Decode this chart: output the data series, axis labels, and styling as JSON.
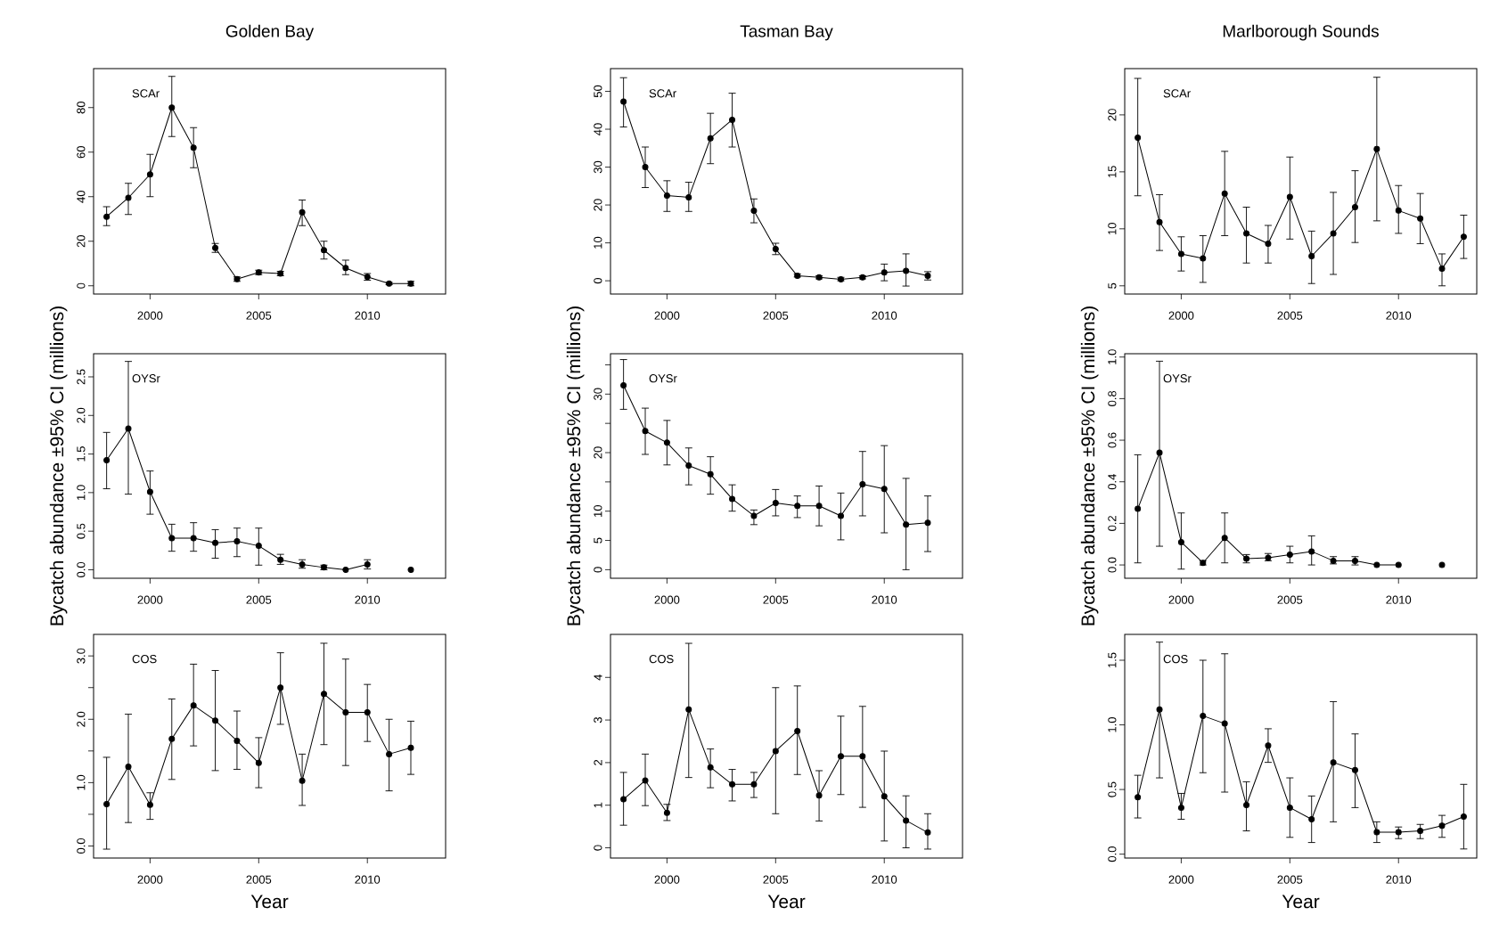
{
  "chart_data": [
    {
      "type": "line",
      "title": "Golden Bay",
      "annotations": [
        "SCAr"
      ],
      "marker": "circle",
      "line_style": "solid",
      "x": [
        1998,
        1999,
        2000,
        2001,
        2002,
        2003,
        2004,
        2005,
        2006,
        2007,
        2008,
        2009,
        2010,
        2011,
        2012
      ],
      "xlim": [
        1997.4,
        2013.6
      ],
      "xticks": [
        2000,
        2005,
        2010
      ],
      "ylim": [
        -3.7,
        97.5
      ],
      "yticks": [
        0,
        20,
        40,
        60,
        80
      ],
      "series": [
        {
          "color": "#000000",
          "values": [
            31,
            39.5,
            50,
            80,
            62,
            17,
            3,
            6,
            5.5,
            33,
            16,
            8,
            4,
            1,
            1
          ],
          "errors": [
            [
              27,
              35.5
            ],
            [
              32,
              46
            ],
            [
              40,
              59
            ],
            [
              67,
              94
            ],
            [
              53,
              71
            ],
            [
              15,
              19
            ],
            [
              2,
              4
            ],
            [
              5,
              7
            ],
            [
              4.5,
              6.5
            ],
            [
              27,
              38.5
            ],
            [
              12,
              20
            ],
            [
              5,
              11.5
            ],
            [
              2.5,
              5.5
            ],
            [
              0.5,
              1.5
            ],
            [
              0,
              2
            ]
          ]
        }
      ]
    },
    {
      "type": "line",
      "title": "Tasman Bay",
      "annotations": [
        "SCAr"
      ],
      "marker": "circle",
      "line_style": "solid",
      "x": [
        1998,
        1999,
        2000,
        2001,
        2002,
        2003,
        2004,
        2005,
        2006,
        2007,
        2008,
        2009,
        2010,
        2011,
        2012
      ],
      "xlim": [
        1997.4,
        2013.6
      ],
      "xticks": [
        2000,
        2005,
        2010
      ],
      "ylim": [
        -3.5,
        56
      ],
      "yticks": [
        0,
        10,
        20,
        30,
        40,
        50
      ],
      "series": [
        {
          "color": "#000000",
          "values": [
            47.3,
            30,
            22.5,
            22,
            37.6,
            42.5,
            18.5,
            8.4,
            1.3,
            0.9,
            0.4,
            0.9,
            2.2,
            2.6,
            1.3
          ],
          "errors": [
            [
              40.6,
              53.6
            ],
            [
              24.6,
              35.3
            ],
            [
              18.3,
              26.4
            ],
            [
              18.3,
              26
            ],
            [
              30.9,
              44.2
            ],
            [
              35.3,
              49.5
            ],
            [
              15.3,
              21.6
            ],
            [
              6.9,
              9.9
            ],
            [
              1.0,
              1.8
            ],
            [
              0.5,
              1.3
            ],
            [
              0,
              0.9
            ],
            [
              0.5,
              1.3
            ],
            [
              0,
              4.4
            ],
            [
              -1.4,
              7.1
            ],
            [
              0.2,
              2.4
            ]
          ]
        }
      ]
    },
    {
      "type": "line",
      "title": "Marlborough Sounds",
      "annotations": [
        "SCAr"
      ],
      "marker": "circle",
      "line_style": "solid",
      "x": [
        1998,
        1999,
        2000,
        2001,
        2002,
        2003,
        2004,
        2005,
        2006,
        2007,
        2008,
        2009,
        2010,
        2011,
        2012,
        2013
      ],
      "xlim": [
        1997.4,
        2013.6
      ],
      "xticks": [
        2000,
        2005,
        2010
      ],
      "ylim": [
        4.28,
        24.06
      ],
      "yticks": [
        5,
        10,
        15,
        20
      ],
      "series": [
        {
          "color": "#000000",
          "values": [
            18.0,
            10.6,
            7.8,
            7.4,
            13.1,
            9.6,
            8.7,
            12.8,
            7.6,
            9.6,
            11.9,
            17.0,
            11.6,
            10.9,
            6.5,
            9.3
          ],
          "errors": [
            [
              12.9,
              23.2
            ],
            [
              8.1,
              13.0
            ],
            [
              6.3,
              9.3
            ],
            [
              5.3,
              9.4
            ],
            [
              9.4,
              16.8
            ],
            [
              7.0,
              11.9
            ],
            [
              7.0,
              10.3
            ],
            [
              9.1,
              16.3
            ],
            [
              5.2,
              9.8
            ],
            [
              6.0,
              13.2
            ],
            [
              8.8,
              15.1
            ],
            [
              10.7,
              23.3
            ],
            [
              9.6,
              13.8
            ],
            [
              8.7,
              13.1
            ],
            [
              5.0,
              7.8
            ],
            [
              7.4,
              11.2
            ]
          ]
        }
      ]
    },
    {
      "type": "line",
      "ylabel": "Bycatch abundance ±95% CI (millions)",
      "annotations": [
        "OYSr"
      ],
      "marker": "circle",
      "line_style": "solid",
      "x": [
        1998,
        1999,
        2000,
        2001,
        2002,
        2003,
        2004,
        2005,
        2006,
        2007,
        2008,
        2009,
        2010,
        2011,
        2012
      ],
      "xlim": [
        1997.4,
        2013.6
      ],
      "xticks": [
        2000,
        2005,
        2010
      ],
      "ylim": [
        -0.11,
        2.8
      ],
      "yticks": [
        {
          "value": 0,
          "label": "0.0"
        },
        {
          "value": 0.5,
          "label": "0.5"
        },
        {
          "value": 1,
          "label": "1.0"
        },
        {
          "value": 1.5,
          "label": "1.5"
        },
        {
          "value": 2,
          "label": "2.0"
        },
        {
          "value": 2.5,
          "label": "2.5"
        }
      ],
      "series": [
        {
          "color": "#000000",
          "values": [
            1.42,
            1.83,
            1.01,
            0.41,
            0.41,
            0.35,
            0.37,
            0.31,
            0.13,
            0.07,
            0.03,
            0.0,
            0.07,
            null,
            0.0
          ],
          "errors": [
            [
              1.05,
              1.78
            ],
            [
              0.98,
              2.7
            ],
            [
              0.72,
              1.28
            ],
            [
              0.24,
              0.59
            ],
            [
              0.24,
              0.61
            ],
            [
              0.15,
              0.52
            ],
            [
              0.17,
              0.54
            ],
            [
              0.06,
              0.54
            ],
            [
              0.07,
              0.2
            ],
            [
              0.02,
              0.13
            ],
            [
              0.0,
              0.06
            ],
            null,
            [
              0.01,
              0.13
            ],
            null,
            null
          ]
        }
      ]
    },
    {
      "type": "line",
      "ylabel": "Bycatch abundance ±95% CI (millions)",
      "annotations": [
        "OYSr"
      ],
      "marker": "circle",
      "line_style": "solid",
      "x": [
        1998,
        1999,
        2000,
        2001,
        2002,
        2003,
        2004,
        2005,
        2006,
        2007,
        2008,
        2009,
        2010,
        2011,
        2012
      ],
      "xlim": [
        1997.4,
        2013.6
      ],
      "xticks": [
        2000,
        2005,
        2010
      ],
      "ylim": [
        -1.46,
        36.9
      ],
      "yticks": [
        0,
        5,
        10,
        {
          "value": 15,
          "label": null
        },
        20,
        {
          "value": 25,
          "label": null
        },
        30,
        {
          "value": 35,
          "label": null
        }
      ],
      "series": [
        {
          "color": "#000000",
          "values": [
            31.5,
            23.7,
            21.7,
            17.8,
            16.3,
            12.1,
            9.2,
            11.4,
            10.9,
            10.9,
            9.2,
            14.6,
            13.8,
            7.7,
            8.0
          ],
          "errors": [
            [
              27.4,
              35.9
            ],
            [
              19.7,
              27.6
            ],
            [
              17.9,
              25.5
            ],
            [
              14.5,
              20.8
            ],
            [
              12.9,
              19.3
            ],
            [
              10.0,
              14.5
            ],
            [
              7.7,
              10.2
            ],
            [
              9.2,
              13.7
            ],
            [
              8.9,
              12.6
            ],
            [
              7.5,
              14.3
            ],
            [
              5.1,
              13.1
            ],
            [
              9.2,
              20.2
            ],
            [
              6.3,
              21.2
            ],
            [
              0,
              15.6
            ],
            [
              3.1,
              12.6
            ]
          ]
        }
      ]
    },
    {
      "type": "line",
      "ylabel": "Bycatch abundance ±95% CI (millions)",
      "annotations": [
        "OYSr"
      ],
      "marker": "circle",
      "line_style": "solid",
      "x": [
        1998,
        1999,
        2000,
        2001,
        2002,
        2003,
        2004,
        2005,
        2006,
        2007,
        2008,
        2009,
        2010,
        2011,
        2012
      ],
      "xlim": [
        1997.4,
        2013.6
      ],
      "xticks": [
        2000,
        2005,
        2010
      ],
      "ylim": [
        -0.064,
        1.016
      ],
      "yticks": [
        {
          "value": 0,
          "label": "0.0"
        },
        {
          "value": 0.2,
          "label": "0.2"
        },
        {
          "value": 0.4,
          "label": "0.4"
        },
        {
          "value": 0.6,
          "label": "0.6"
        },
        {
          "value": 0.8,
          "label": "0.8"
        },
        {
          "value": 1,
          "label": "1.0"
        }
      ],
      "series": [
        {
          "color": "#000000",
          "values": [
            0.27,
            0.54,
            0.11,
            0.01,
            0.13,
            0.03,
            0.035,
            0.05,
            0.065,
            0.02,
            0.02,
            0.0,
            0.0,
            null,
            0.0
          ],
          "errors": [
            [
              0.01,
              0.53
            ],
            [
              0.09,
              0.98
            ],
            [
              -0.02,
              0.25
            ],
            [
              0,
              0.02
            ],
            [
              0.01,
              0.25
            ],
            [
              0.01,
              0.05
            ],
            [
              0.02,
              0.055
            ],
            [
              0.01,
              0.09
            ],
            [
              0,
              0.14
            ],
            [
              0.005,
              0.04
            ],
            [
              0,
              0.04
            ],
            null,
            null,
            null,
            null
          ]
        }
      ]
    },
    {
      "type": "line",
      "xlabel": "Year",
      "annotations": [
        "COS"
      ],
      "marker": "circle",
      "line_style": "solid",
      "x": [
        1998,
        1999,
        2000,
        2001,
        2002,
        2003,
        2004,
        2005,
        2006,
        2007,
        2008,
        2009,
        2010,
        2011,
        2012
      ],
      "xlim": [
        1997.4,
        2013.6
      ],
      "xticks": [
        2000,
        2005,
        2010
      ],
      "ylim": [
        -0.19,
        3.34
      ],
      "yticks": [
        {
          "value": 0,
          "label": "0.0"
        },
        {
          "value": 0.5,
          "label": null
        },
        {
          "value": 1,
          "label": "1.0"
        },
        {
          "value": 1.5,
          "label": null
        },
        {
          "value": 2,
          "label": "2.0"
        },
        {
          "value": 2.5,
          "label": null
        },
        {
          "value": 3,
          "label": "3.0"
        }
      ],
      "series": [
        {
          "color": "#000000",
          "values": [
            0.66,
            1.25,
            0.65,
            1.69,
            2.22,
            1.98,
            1.66,
            1.31,
            2.5,
            1.03,
            2.4,
            2.11,
            2.11,
            1.45,
            1.55
          ],
          "errors": [
            [
              -0.05,
              1.4
            ],
            [
              0.37,
              2.08
            ],
            [
              0.42,
              0.84
            ],
            [
              1.05,
              2.32
            ],
            [
              1.58,
              2.87
            ],
            [
              1.19,
              2.77
            ],
            [
              1.21,
              2.13
            ],
            [
              0.92,
              1.71
            ],
            [
              1.92,
              3.05
            ],
            [
              0.64,
              1.45
            ],
            [
              1.6,
              3.2
            ],
            [
              1.27,
              2.95
            ],
            [
              1.65,
              2.55
            ],
            [
              0.87,
              2.0
            ],
            [
              1.13,
              1.97
            ]
          ]
        }
      ]
    },
    {
      "type": "line",
      "xlabel": "Year",
      "annotations": [
        "COS"
      ],
      "marker": "circle",
      "line_style": "solid",
      "x": [
        1998,
        1999,
        2000,
        2001,
        2002,
        2003,
        2004,
        2005,
        2006,
        2007,
        2008,
        2009,
        2010,
        2011,
        2012
      ],
      "xlim": [
        1997.4,
        2013.6
      ],
      "xticks": [
        2000,
        2005,
        2010
      ],
      "ylim": [
        -0.24,
        5.01
      ],
      "yticks": [
        0,
        1,
        2,
        3,
        4
      ],
      "series": [
        {
          "color": "#000000",
          "values": [
            1.14,
            1.58,
            0.82,
            3.25,
            1.89,
            1.49,
            1.49,
            2.27,
            2.74,
            1.23,
            2.15,
            2.15,
            1.21,
            0.64,
            0.36
          ],
          "errors": [
            [
              0.53,
              1.77
            ],
            [
              0.99,
              2.2
            ],
            [
              0.64,
              1.02
            ],
            [
              1.65,
              4.8
            ],
            [
              1.41,
              2.32
            ],
            [
              1.1,
              1.84
            ],
            [
              1.18,
              1.77
            ],
            [
              0.8,
              3.76
            ],
            [
              1.72,
              3.8
            ],
            [
              0.63,
              1.81
            ],
            [
              1.25,
              3.09
            ],
            [
              0.95,
              3.32
            ],
            [
              0.16,
              2.27
            ],
            [
              0,
              1.22
            ],
            [
              -0.03,
              0.8
            ]
          ]
        }
      ]
    },
    {
      "type": "line",
      "xlabel": "Year",
      "annotations": [
        "COS"
      ],
      "marker": "circle",
      "line_style": "solid",
      "x": [
        1998,
        1999,
        2000,
        2001,
        2002,
        2003,
        2004,
        2005,
        2006,
        2007,
        2008,
        2009,
        2010,
        2011,
        2012,
        2013
      ],
      "xlim": [
        1997.4,
        2013.6
      ],
      "xticks": [
        2000,
        2005,
        2010
      ],
      "ylim": [
        -0.03,
        1.7
      ],
      "yticks": [
        {
          "value": 0,
          "label": "0.0"
        },
        {
          "value": 0.5,
          "label": "0.5"
        },
        {
          "value": 1,
          "label": "1.0"
        },
        {
          "value": 1.5,
          "label": "1.5"
        }
      ],
      "series": [
        {
          "color": "#000000",
          "values": [
            0.44,
            1.12,
            0.36,
            1.07,
            1.01,
            0.38,
            0.84,
            0.36,
            0.27,
            0.71,
            0.65,
            0.17,
            0.17,
            0.18,
            0.22,
            0.29
          ],
          "errors": [
            [
              0.28,
              0.61
            ],
            [
              0.59,
              1.64
            ],
            [
              0.27,
              0.47
            ],
            [
              0.63,
              1.5
            ],
            [
              0.48,
              1.55
            ],
            [
              0.18,
              0.56
            ],
            [
              0.71,
              0.97
            ],
            [
              0.13,
              0.59
            ],
            [
              0.09,
              0.45
            ],
            [
              0.25,
              1.18
            ],
            [
              0.36,
              0.93
            ],
            [
              0.09,
              0.25
            ],
            [
              0.12,
              0.21
            ],
            [
              0.12,
              0.23
            ],
            [
              0.13,
              0.3
            ],
            [
              0.04,
              0.54
            ]
          ]
        }
      ]
    }
  ]
}
